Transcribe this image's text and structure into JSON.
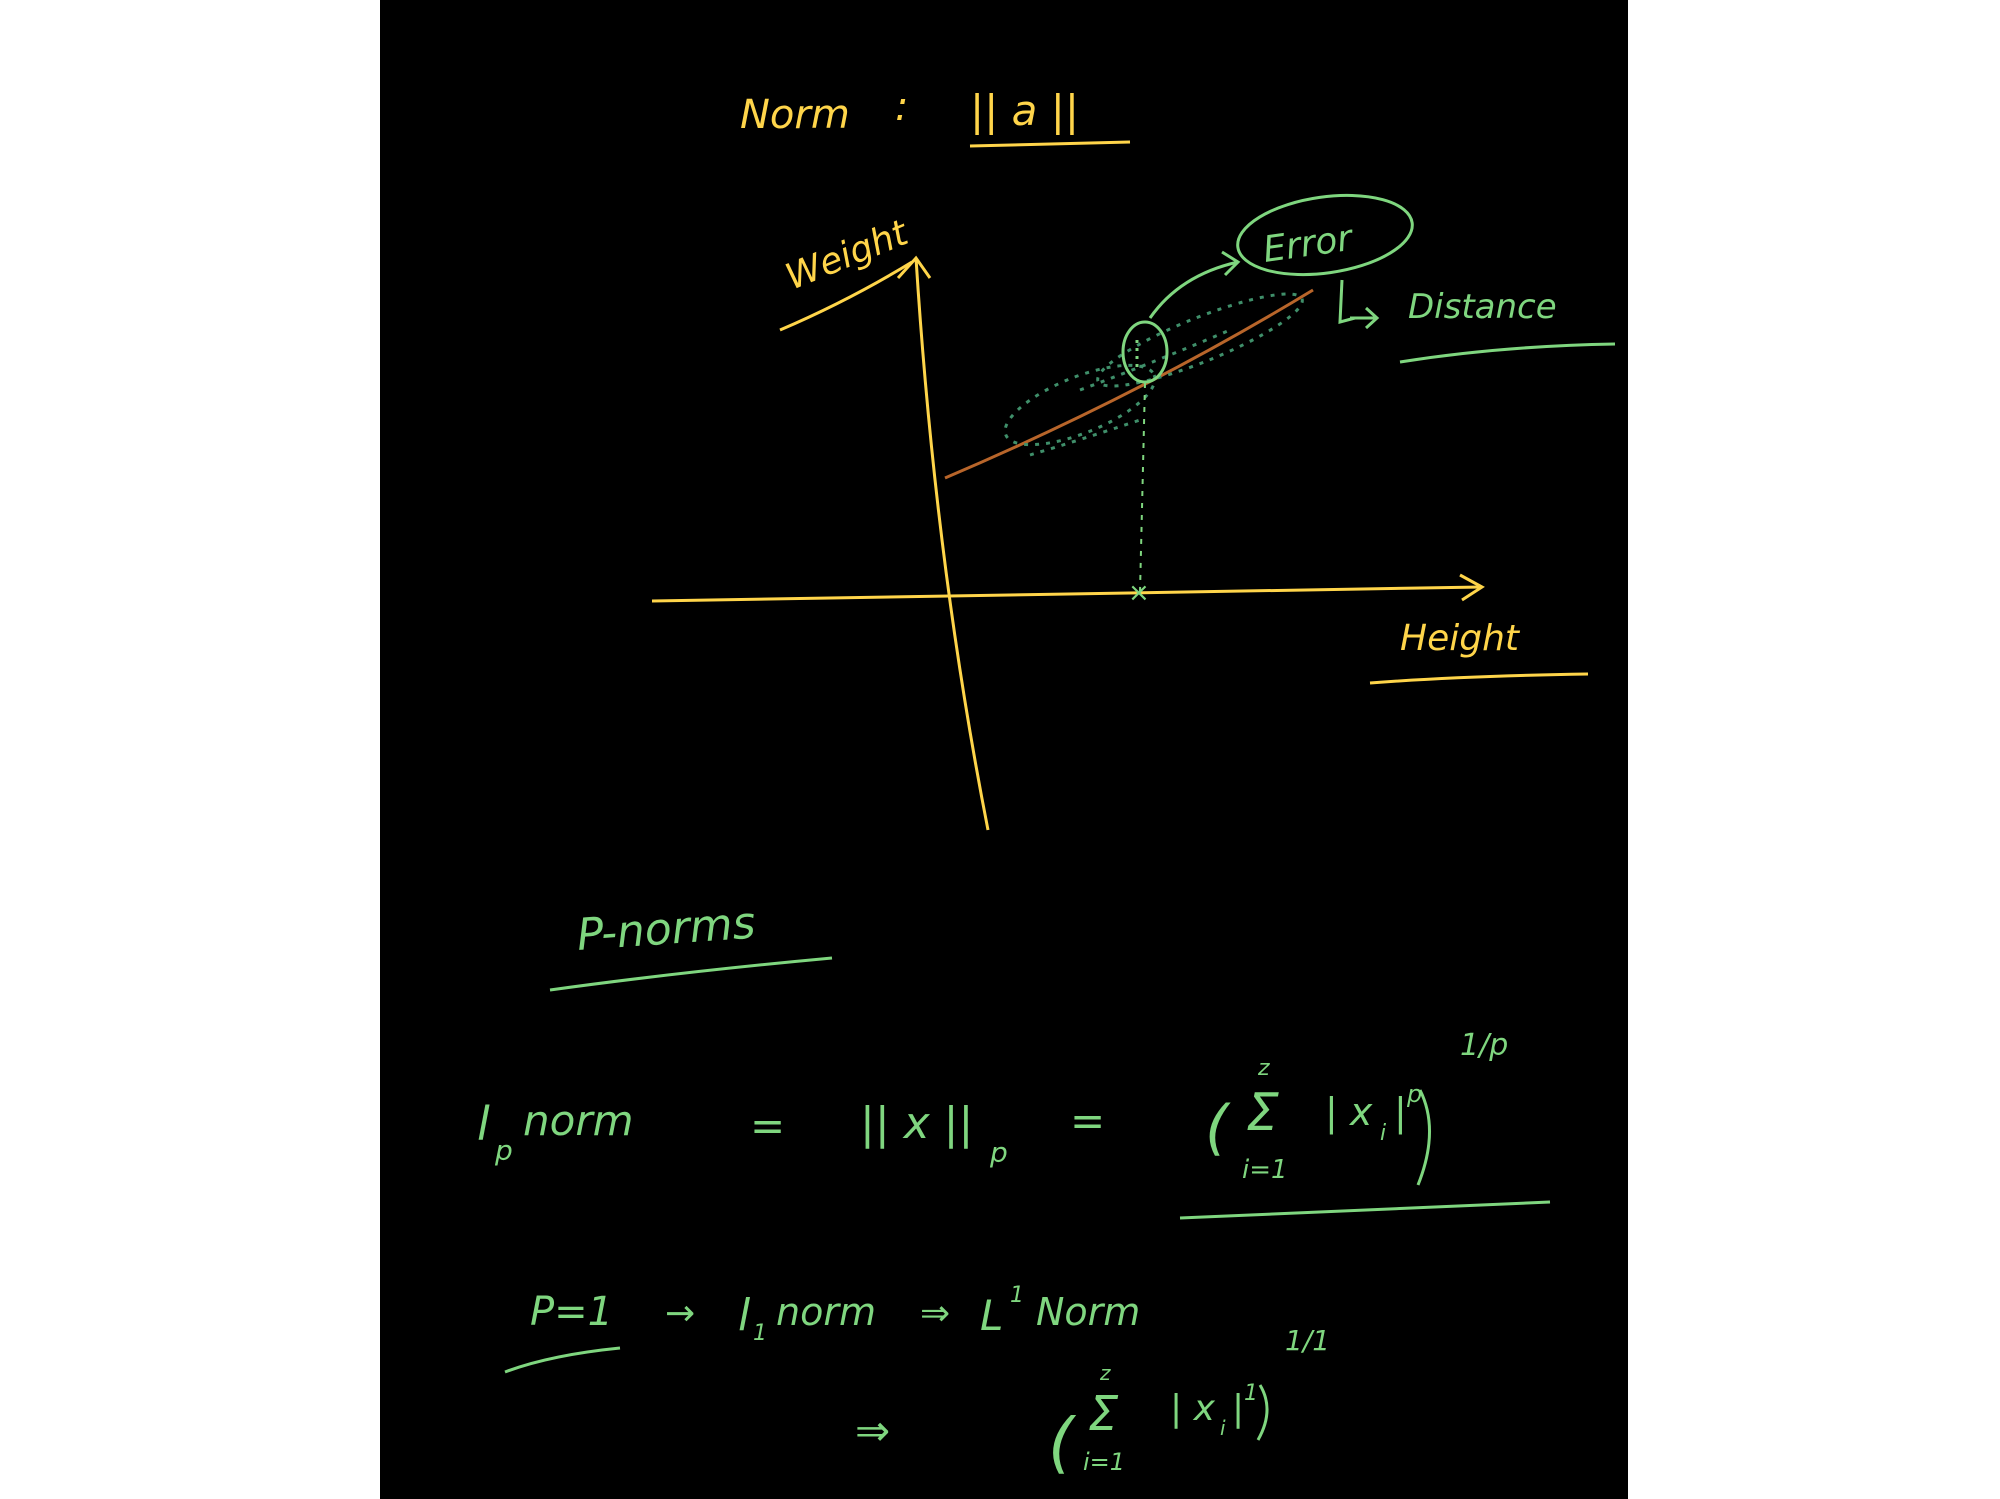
{
  "colors": {
    "background": "#000000",
    "outer": "#ffffff",
    "yellow_ink": "#ffd54a",
    "green_ink": "#7fd67f",
    "brown_line": "#b8652a",
    "teal_dots": "#3f8f6a"
  },
  "header": {
    "word": "Norm",
    "colon": ":",
    "expression": "|| a ||"
  },
  "graph": {
    "y_axis_label": "Weight",
    "x_axis_label": "Height",
    "error_label": "Error",
    "distance_label": "Distance",
    "x_mark": "×"
  },
  "p_norms": {
    "title": "P-norms",
    "definition": {
      "lhs": "l",
      "lhs_subscript": "p",
      "lhs_word": "norm",
      "equals1": "=",
      "norm_expr": "|| x ||",
      "norm_subscript": "p",
      "equals2": "=",
      "paren_open": "(",
      "sum_top": "z",
      "sum_symbol": "Σ",
      "sum_bottom": "i=1",
      "term": "| x",
      "term_subscript": "i",
      "term_bar": "|",
      "term_power": "p",
      "paren_close": ")",
      "outer_power": "1/p"
    },
    "p1_case": {
      "condition": "P=1",
      "arrow1": "→",
      "l1": "l",
      "l1_subscript": "1",
      "l1_word": "norm",
      "arrow2": "⇒",
      "l1_norm": "L",
      "l1_norm_power": "1",
      "l1_norm_word": "Norm"
    },
    "p1_expansion": {
      "implies": "⇒",
      "paren_open": "(",
      "sum_top": "z",
      "sum_symbol": "Σ",
      "sum_bottom": "i=1",
      "term": "| x",
      "term_subscript": "i",
      "term_bar": "|",
      "term_power": "1",
      "paren_close": ")",
      "outer_power": "1/1"
    }
  }
}
